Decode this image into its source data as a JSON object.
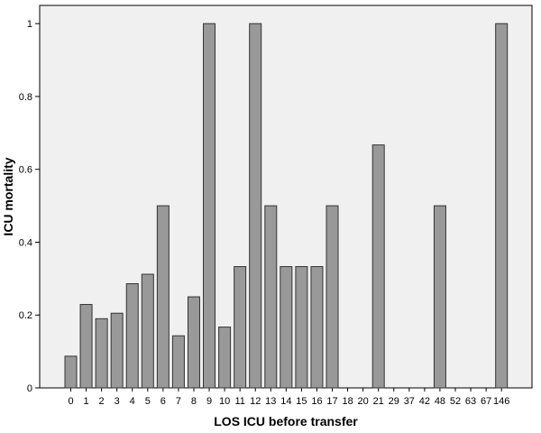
{
  "chart_data": {
    "type": "bar",
    "title": "",
    "xlabel": "LOS ICU before transfer",
    "ylabel": "ICU mortality",
    "ylim": [
      0,
      1.05
    ],
    "yticks": [
      "0",
      "0.2",
      "0.4",
      "0.6",
      "0.8",
      "1"
    ],
    "grid": false,
    "colors": {
      "bar_fill": "#999999",
      "bar_stroke": "#333333",
      "plot_bg": "#f0f0f0"
    },
    "categories": [
      "0",
      "1",
      "2",
      "3",
      "4",
      "5",
      "6",
      "7",
      "8",
      "9",
      "10",
      "11",
      "12",
      "13",
      "14",
      "15",
      "16",
      "17",
      "18",
      "20",
      "21",
      "29",
      "37",
      "42",
      "48",
      "52",
      "63",
      "67",
      "146"
    ],
    "values": [
      0.087,
      0.229,
      0.19,
      0.205,
      0.286,
      0.312,
      0.5,
      0.143,
      0.25,
      1.0,
      0.167,
      0.333,
      1.0,
      0.5,
      0.333,
      0.333,
      0.333,
      0.5,
      0,
      0,
      0.667,
      0,
      0,
      0,
      0.5,
      0,
      0,
      0,
      1.0
    ]
  }
}
